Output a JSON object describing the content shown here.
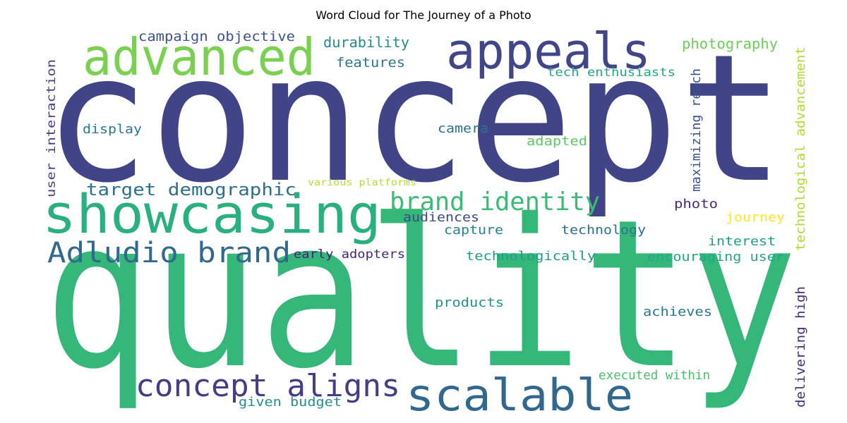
{
  "title": "Word Cloud for The Journey of a Photo",
  "words": [
    {
      "text": "concept",
      "color": "#414487"
    },
    {
      "text": "quality",
      "color": "#35b779"
    },
    {
      "text": "appeals",
      "color": "#404688"
    },
    {
      "text": "advanced",
      "color": "#7ad151"
    },
    {
      "text": "showcasing",
      "color": "#2ab07f"
    },
    {
      "text": "scalable",
      "color": "#31688e"
    },
    {
      "text": "concept aligns",
      "color": "#433e85"
    },
    {
      "text": "Adludio brand",
      "color": "#31688e"
    },
    {
      "text": "brand identity",
      "color": "#3bbb75"
    },
    {
      "text": "target demographic",
      "color": "#2d708e"
    },
    {
      "text": "campaign objective",
      "color": "#3b528b"
    },
    {
      "text": "durability",
      "color": "#238a8d"
    },
    {
      "text": "features",
      "color": "#2a788e"
    },
    {
      "text": "photography",
      "color": "#6ece58"
    },
    {
      "text": "tech enthusiasts",
      "color": "#22a884"
    },
    {
      "text": "technological advancement",
      "color": "#addc30"
    },
    {
      "text": "user interaction",
      "color": "#414487"
    },
    {
      "text": "display",
      "color": "#2a788e"
    },
    {
      "text": "camera",
      "color": "#2c728e"
    },
    {
      "text": "adapted",
      "color": "#5ec962"
    },
    {
      "text": "maximizing reach",
      "color": "#3b528b"
    },
    {
      "text": "various platforms",
      "color": "#b5de2b"
    },
    {
      "text": "photo",
      "color": "#482878"
    },
    {
      "text": "journey",
      "color": "#fde725"
    },
    {
      "text": "audiences",
      "color": "#3e4989"
    },
    {
      "text": "capture",
      "color": "#26828e"
    },
    {
      "text": "technology",
      "color": "#2c718e"
    },
    {
      "text": "interest",
      "color": "#1fa187"
    },
    {
      "text": "early adopters",
      "color": "#482475"
    },
    {
      "text": "technologically",
      "color": "#1f9e89"
    },
    {
      "text": "encouraging user",
      "color": "#22a785"
    },
    {
      "text": "products",
      "color": "#20928c"
    },
    {
      "text": "achieves",
      "color": "#2a788e"
    },
    {
      "text": "delivering high",
      "color": "#472d7b"
    },
    {
      "text": "executed within",
      "color": "#4ac16d"
    },
    {
      "text": "given budget",
      "color": "#21918c"
    }
  ]
}
